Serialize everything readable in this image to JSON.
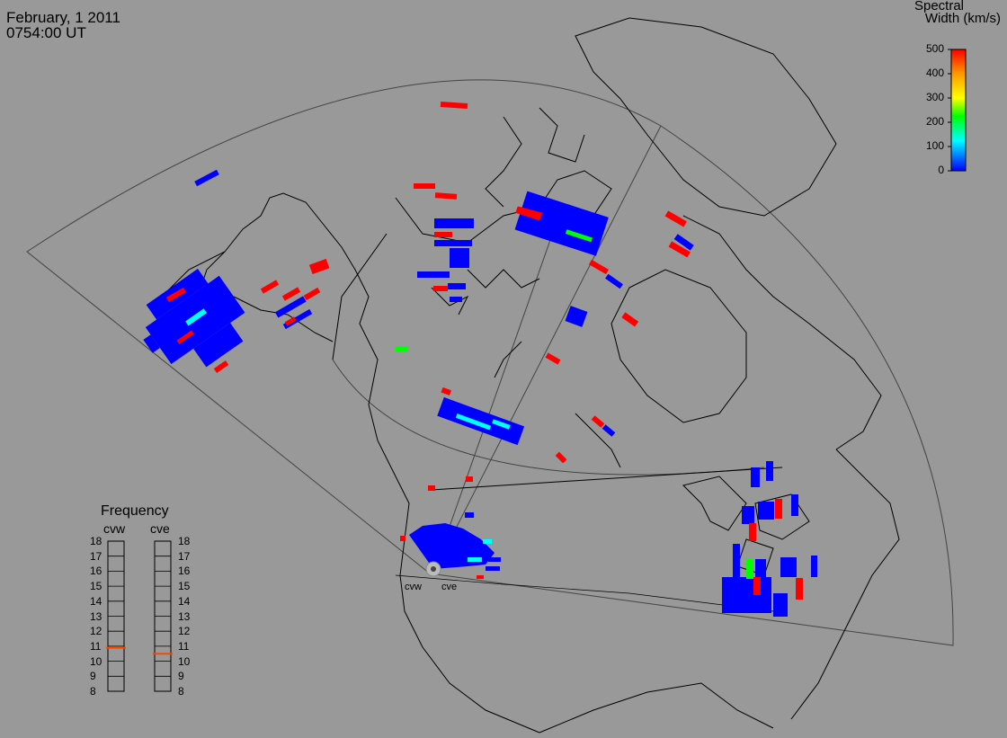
{
  "header": {
    "date": "February, 1 2011",
    "time": "0754:00 UT"
  },
  "colorbar": {
    "title_line1": "Spectral",
    "title_line2": "Width (km/s)",
    "ticks": [
      "500",
      "400",
      "300",
      "200",
      "100",
      "0"
    ],
    "stops": [
      "#ff0000",
      "#ff9900",
      "#ffff00",
      "#00ff00",
      "#00ffff",
      "#0000ff"
    ]
  },
  "frequency_panel": {
    "title": "Frequency",
    "radars": [
      {
        "name": "cvw",
        "value_mhz": 10.9
      },
      {
        "name": "cve",
        "value_mhz": 10.5
      }
    ],
    "ticks": [
      "18",
      "17",
      "16",
      "15",
      "14",
      "13",
      "12",
      "11",
      "10",
      "9",
      "8"
    ],
    "marker_color": "#ff4400"
  },
  "radar_sites": [
    {
      "name": "cvw"
    },
    {
      "name": "cve"
    }
  ],
  "colors": {
    "background": "#999999",
    "coast": "#000000",
    "fov": "#444444",
    "low_width": "#0000ff",
    "high_width": "#ff0000",
    "mid_width": "#00ff00",
    "cyan_width": "#00ffff"
  }
}
